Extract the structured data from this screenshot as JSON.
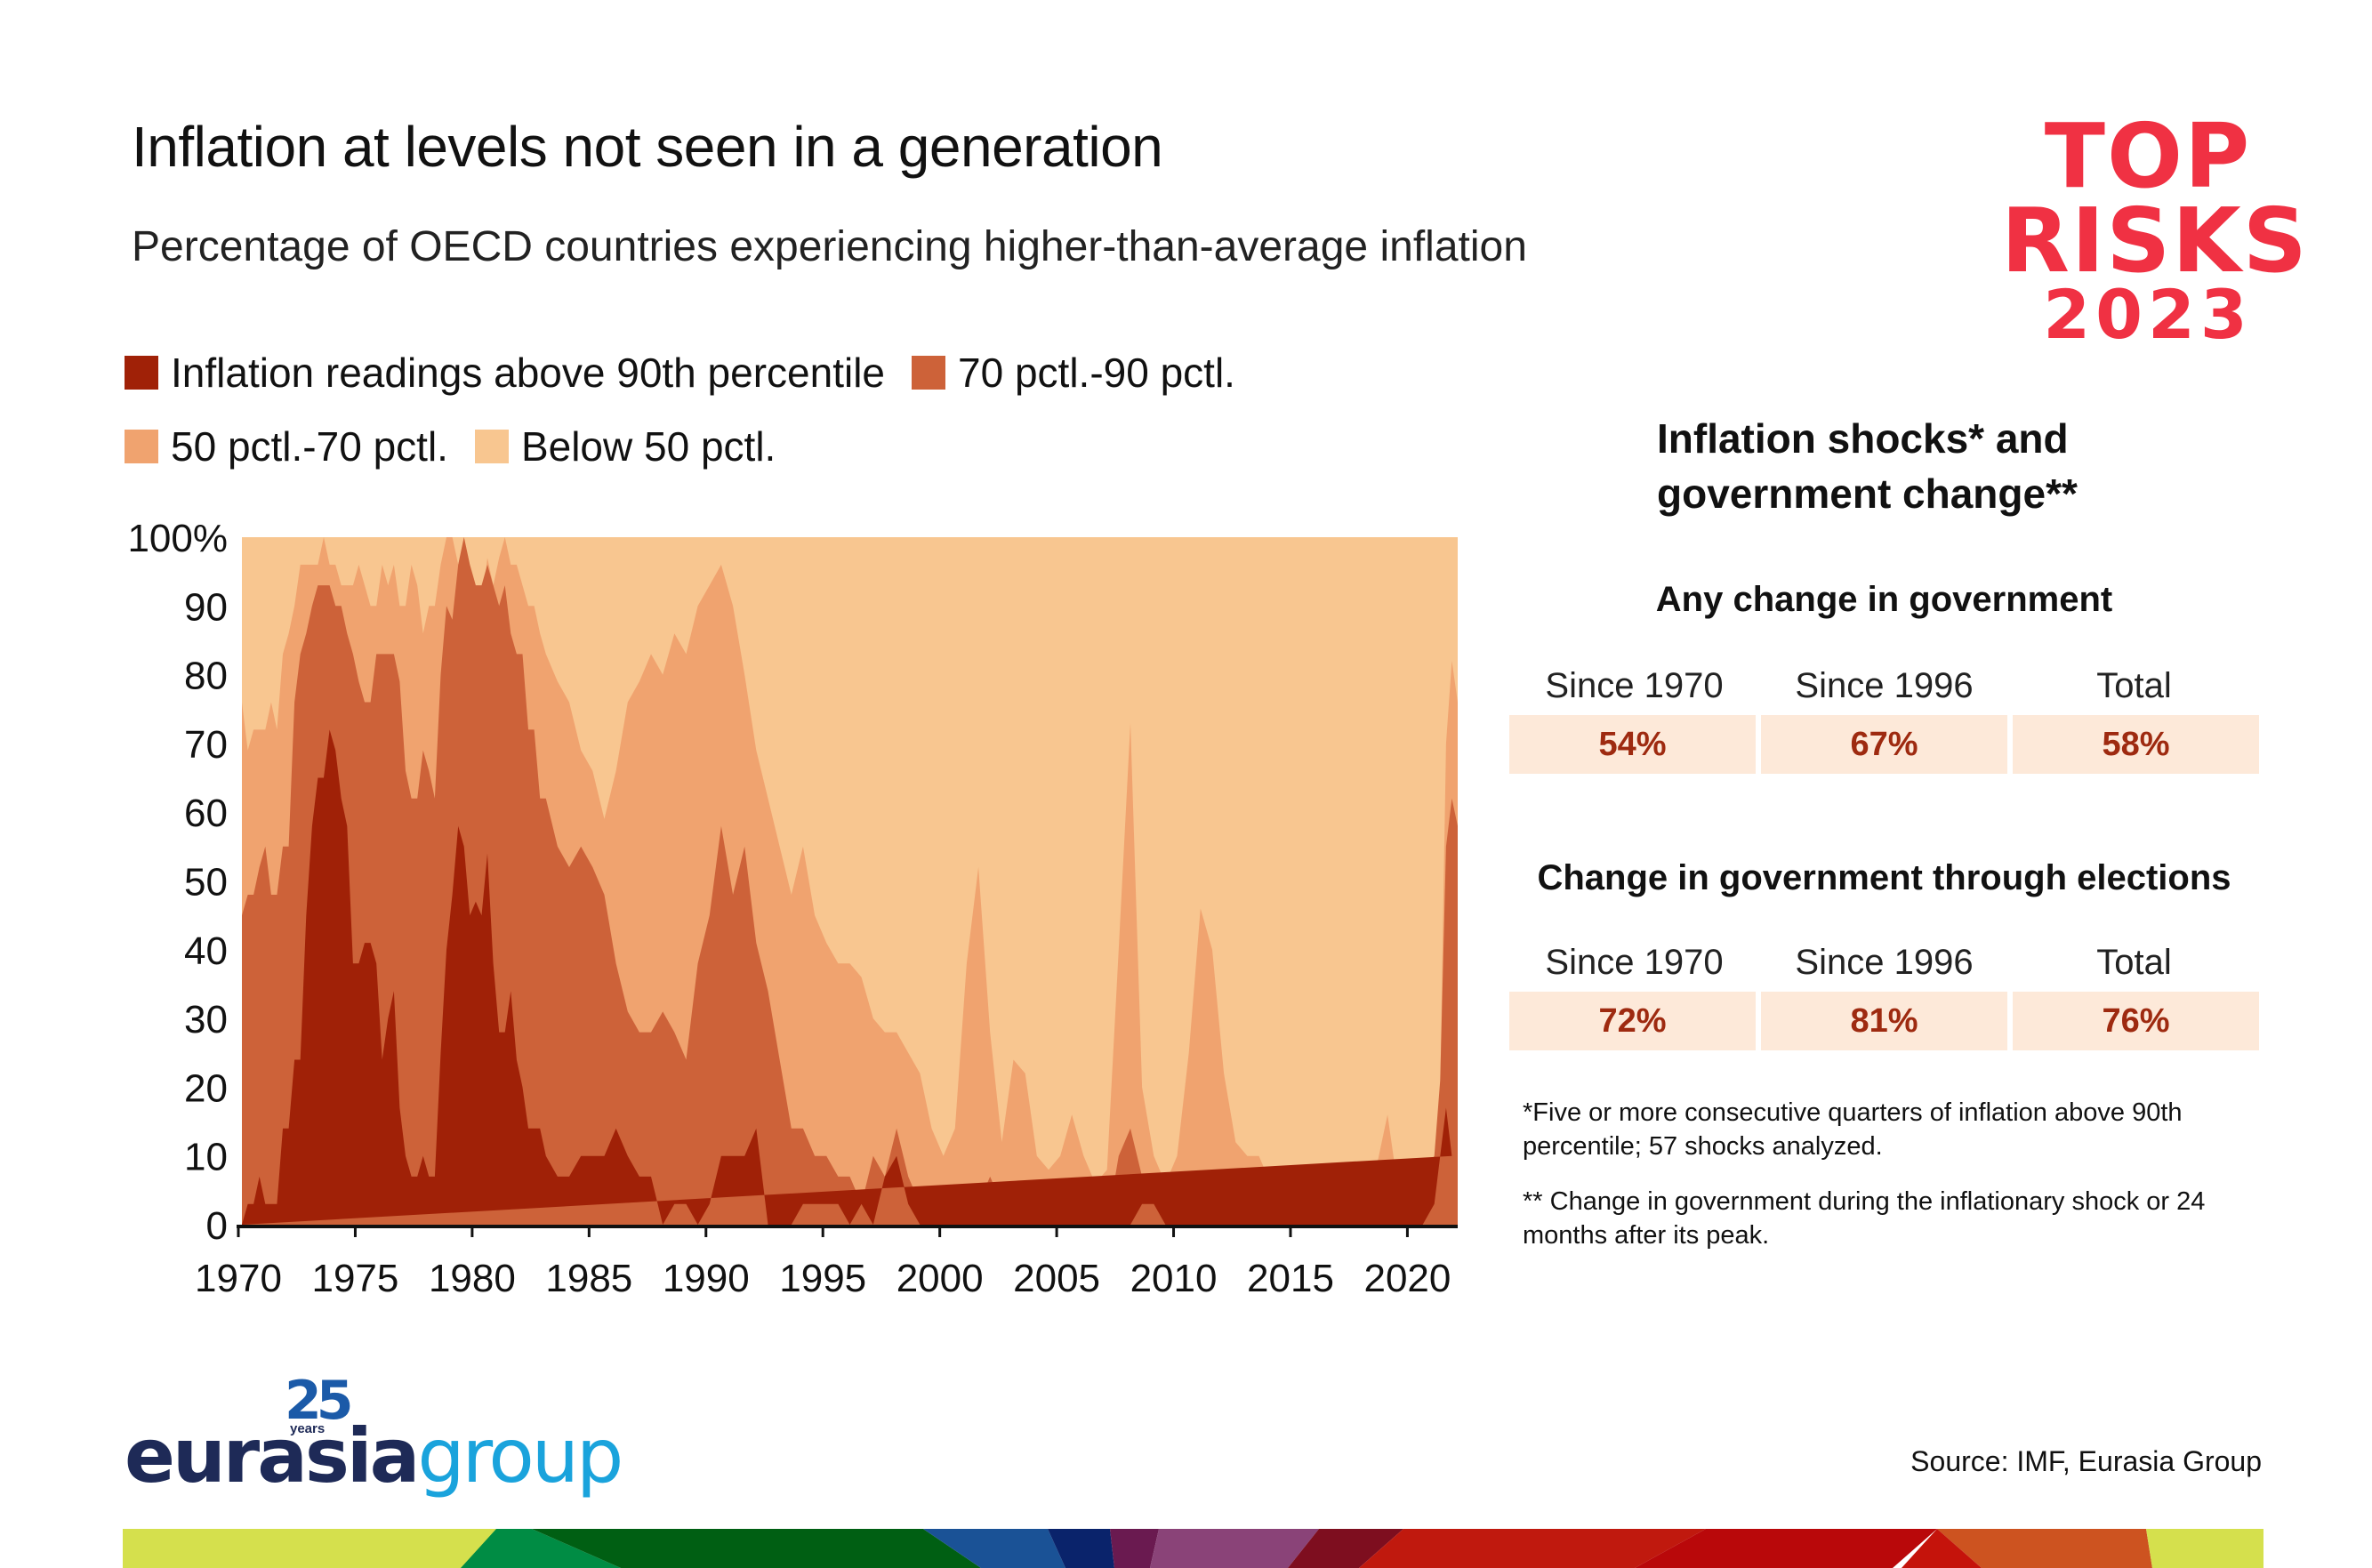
{
  "header": {
    "title": "Inflation at levels not seen in a generation",
    "subtitle": "Percentage of OECD countries experiencing higher-than-average inflation"
  },
  "brand": {
    "top_risks_line1": "TOP",
    "top_risks_line2": "RISKS",
    "top_risks_line3": "2023",
    "top_risks_color": "#f03143",
    "eg_anniversary": "25",
    "eg_years": "years",
    "eg_name_part1": "eurasia",
    "eg_name_part2": "group"
  },
  "legend": [
    {
      "label": "Inflation readings above 90th percentile",
      "color": "#a02107"
    },
    {
      "label": "70 pctl.-90 pctl.",
      "color": "#cd6239"
    },
    {
      "label": "50 pctl.-70 pctl.",
      "color": "#f0a36f"
    },
    {
      "label": "Below 50 pctl.",
      "color": "#f8c690"
    }
  ],
  "chart_data": {
    "type": "area",
    "stacked": true,
    "title": "Inflation at levels not seen in a generation",
    "subtitle": "Percentage of OECD countries experiencing higher-than-average inflation",
    "xlabel": "",
    "ylabel": "",
    "xlim": [
      1970,
      2022
    ],
    "ylim": [
      0,
      100
    ],
    "x_ticks": [
      1970,
      1975,
      1980,
      1985,
      1990,
      1995,
      2000,
      2005,
      2010,
      2015,
      2020
    ],
    "y_ticks": [
      0,
      10,
      20,
      30,
      40,
      50,
      60,
      70,
      80,
      90,
      100
    ],
    "y_tick_labels": [
      "0",
      "10",
      "20",
      "30",
      "40",
      "50",
      "60",
      "70",
      "80",
      "90",
      "100%"
    ],
    "legend_position": "top-left",
    "grid": false,
    "series_note": "Values are cumulative stacked boundaries: above90 = share above 90th pctl; above70 = share above 70th pctl; above50 = share above 50th pctl; remainder to 100 is below 50 pctl.",
    "x": [
      1970.0,
      1970.25,
      1970.5,
      1970.75,
      1971.0,
      1971.25,
      1971.5,
      1971.75,
      1972.0,
      1972.25,
      1972.5,
      1972.75,
      1973.0,
      1973.25,
      1973.5,
      1973.75,
      1974.0,
      1974.25,
      1974.5,
      1974.75,
      1975.0,
      1975.25,
      1975.5,
      1975.75,
      1976.0,
      1976.25,
      1976.5,
      1976.75,
      1977.0,
      1977.25,
      1977.5,
      1977.75,
      1978.0,
      1978.25,
      1978.5,
      1978.75,
      1979.0,
      1979.25,
      1979.5,
      1979.75,
      1980.0,
      1980.25,
      1980.5,
      1980.75,
      1981.0,
      1981.25,
      1981.5,
      1981.75,
      1982.0,
      1982.25,
      1982.5,
      1982.75,
      1983.0,
      1983.5,
      1984.0,
      1984.5,
      1985.0,
      1985.5,
      1986.0,
      1986.5,
      1987.0,
      1987.5,
      1988.0,
      1988.5,
      1989.0,
      1989.5,
      1990.0,
      1990.5,
      1991.0,
      1991.5,
      1992.0,
      1992.5,
      1993.0,
      1993.5,
      1994.0,
      1994.5,
      1995.0,
      1995.5,
      1996.0,
      1996.5,
      1997.0,
      1997.5,
      1998.0,
      1998.5,
      1999.0,
      1999.5,
      2000.0,
      2000.5,
      2001.0,
      2001.5,
      2002.0,
      2002.5,
      2003.0,
      2003.5,
      2004.0,
      2004.5,
      2005.0,
      2005.5,
      2006.0,
      2006.5,
      2007.0,
      2007.5,
      2008.0,
      2008.5,
      2009.0,
      2009.5,
      2010.0,
      2010.5,
      2011.0,
      2011.5,
      2012.0,
      2012.5,
      2013.0,
      2013.5,
      2014.0,
      2014.5,
      2015.0,
      2015.5,
      2016.0,
      2016.5,
      2017.0,
      2017.5,
      2018.0,
      2018.5,
      2019.0,
      2019.5,
      2020.0,
      2020.5,
      2021.0,
      2021.25,
      2021.5,
      2021.75,
      2022.0
    ],
    "series": [
      {
        "name": "Inflation readings above 90th percentile",
        "key": "above90",
        "values": [
          0,
          3,
          3,
          7,
          3,
          3,
          3,
          14,
          14,
          24,
          24,
          45,
          58,
          65,
          65,
          72,
          69,
          62,
          58,
          38,
          38,
          41,
          41,
          38,
          24,
          30,
          34,
          17,
          10,
          7,
          7,
          10,
          7,
          7,
          25,
          40,
          48,
          58,
          55,
          45,
          47,
          45,
          54,
          38,
          28,
          28,
          34,
          24,
          20,
          14,
          14,
          14,
          10,
          7,
          7,
          10,
          10,
          10,
          14,
          10,
          7,
          7,
          0,
          3,
          3,
          0,
          3,
          10,
          10,
          10,
          14,
          0,
          0,
          0,
          3,
          3,
          3,
          3,
          0,
          3,
          0,
          7,
          10,
          3,
          0,
          0,
          0,
          0,
          0,
          0,
          0,
          0,
          0,
          0,
          0,
          0,
          0,
          0,
          0,
          0,
          0,
          0,
          0,
          3,
          3,
          0,
          0,
          0,
          0,
          0,
          0,
          0,
          0,
          0,
          0,
          0,
          0,
          0,
          0,
          0,
          0,
          0,
          0,
          0,
          0,
          0,
          0,
          0,
          3,
          10,
          17,
          10
        ]
      },
      {
        "name": "70 pctl.-90 pctl. (cumulative)",
        "key": "above70",
        "values": [
          45,
          48,
          48,
          52,
          55,
          48,
          48,
          55,
          55,
          76,
          83,
          86,
          90,
          93,
          93,
          93,
          90,
          90,
          86,
          83,
          79,
          76,
          76,
          83,
          83,
          83,
          83,
          79,
          66,
          62,
          62,
          69,
          66,
          62,
          80,
          90,
          88,
          96,
          100,
          96,
          93,
          93,
          96,
          93,
          90,
          93,
          86,
          83,
          83,
          72,
          72,
          62,
          62,
          55,
          52,
          55,
          52,
          48,
          38,
          31,
          28,
          28,
          31,
          28,
          24,
          38,
          45,
          58,
          48,
          55,
          41,
          34,
          24,
          14,
          14,
          10,
          10,
          7,
          7,
          3,
          10,
          7,
          14,
          7,
          3,
          0,
          0,
          0,
          3,
          3,
          7,
          3,
          0,
          0,
          0,
          3,
          0,
          3,
          0,
          0,
          0,
          10,
          14,
          7,
          3,
          3,
          0,
          0,
          3,
          3,
          3,
          0,
          3,
          3,
          3,
          0,
          0,
          0,
          0,
          0,
          0,
          0,
          0,
          0,
          0,
          0,
          3,
          7,
          10,
          21,
          55,
          62,
          58
        ]
      },
      {
        "name": "50 pctl.-70 pctl. (cumulative)",
        "key": "above50",
        "values": [
          76,
          69,
          72,
          72,
          72,
          76,
          72,
          83,
          86,
          90,
          96,
          96,
          96,
          96,
          100,
          96,
          96,
          93,
          93,
          93,
          96,
          93,
          90,
          90,
          96,
          93,
          96,
          90,
          90,
          96,
          93,
          86,
          90,
          90,
          96,
          100,
          100,
          96,
          100,
          96,
          93,
          90,
          97,
          93,
          97,
          100,
          96,
          96,
          93,
          90,
          90,
          86,
          83,
          79,
          76,
          69,
          66,
          59,
          66,
          76,
          79,
          83,
          80,
          86,
          83,
          90,
          93,
          96,
          90,
          80,
          69,
          62,
          55,
          48,
          55,
          45,
          41,
          38,
          38,
          36,
          30,
          28,
          28,
          25,
          22,
          14,
          10,
          14,
          38,
          52,
          28,
          12,
          24,
          22,
          10,
          8,
          10,
          16,
          10,
          6,
          8,
          40,
          73,
          20,
          10,
          6,
          10,
          25,
          46,
          40,
          22,
          12,
          10,
          10,
          6,
          3,
          6,
          3,
          3,
          3,
          0,
          0,
          0,
          8,
          16,
          4,
          4,
          0,
          0,
          20,
          70,
          82,
          76
        ]
      }
    ]
  },
  "right_panel": {
    "title": "Inflation shocks* and government change**",
    "sections": [
      {
        "title": "Any change in government",
        "headers": [
          "Since 1970",
          "Since 1996",
          "Total"
        ],
        "values": [
          "54%",
          "67%",
          "58%"
        ]
      },
      {
        "title": "Change in government through elections",
        "headers": [
          "Since 1970",
          "Since 1996",
          "Total"
        ],
        "values": [
          "72%",
          "81%",
          "76%"
        ]
      }
    ],
    "footnotes": [
      "*Five or more consecutive quarters of inflation above 90th percentile; 57 shocks analyzed.",
      "** Change in government during the inflationary shock or 24 months after its peak."
    ],
    "value_color": "#9e2a10",
    "cell_bg": "#fde9d9"
  },
  "footer": {
    "source": "Source: IMF, Eurasia Group",
    "band_colors": [
      "#d5e04d",
      "#008c44",
      "#005f13",
      "#1a5296",
      "#0a236b",
      "#6a1a50",
      "#8a4378",
      "#7e0e1f",
      "#c0190e",
      "#b9080a",
      "#cd5320",
      "#d5e04d"
    ]
  }
}
